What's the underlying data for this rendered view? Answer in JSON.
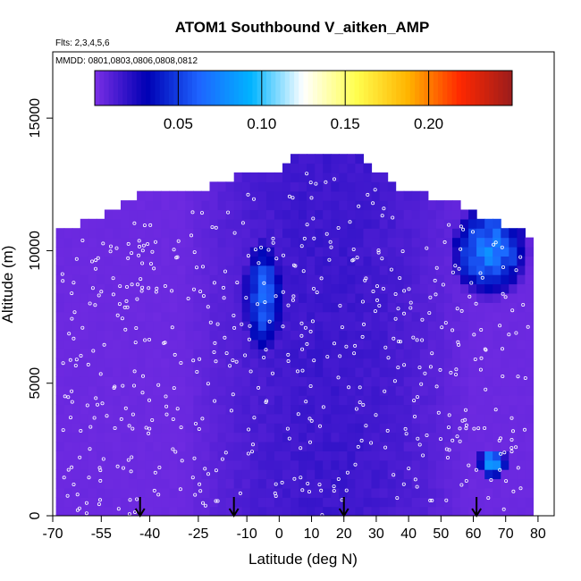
{
  "chart_data": {
    "type": "heatmap",
    "title": "ATOM1 Southbound V_aitken_AMP",
    "subtitle_flights": "Flts: 2,3,4,5,6",
    "subtitle_dates": "MMDD: 0801,0803,0806,0808,0812",
    "xlabel": "Latitude (deg N)",
    "ylabel": "Altitude (m)",
    "xlim": [
      -70,
      85
    ],
    "ylim": [
      0,
      17500
    ],
    "x_ticks": [
      -70,
      -55,
      -40,
      -25,
      -10,
      0,
      10,
      20,
      30,
      40,
      50,
      60,
      70,
      80
    ],
    "y_ticks": [
      0,
      5000,
      10000,
      15000
    ],
    "colorbar": {
      "range": [
        0,
        0.25
      ],
      "ticks": [
        0.05,
        0.1,
        0.15,
        0.2
      ],
      "tick_labels": [
        "0.05",
        "0.10",
        "0.15",
        "0.20"
      ],
      "colors": [
        "#7b2fe6",
        "#0000b4",
        "#1e64ff",
        "#00b4ff",
        "#ffffff",
        "#ffff50",
        "#ffb400",
        "#ff2800",
        "#9b1c1c"
      ]
    },
    "top_altitude_envelope": [
      {
        "lat": -69,
        "alt": 10500
      },
      {
        "lat": -60,
        "alt": 10900
      },
      {
        "lat": -50,
        "alt": 11400
      },
      {
        "lat": -40,
        "alt": 12000
      },
      {
        "lat": -25,
        "alt": 12000
      },
      {
        "lat": -10,
        "alt": 12800
      },
      {
        "lat": 0,
        "alt": 12800
      },
      {
        "lat": 5,
        "alt": 13300
      },
      {
        "lat": 25,
        "alt": 13400
      },
      {
        "lat": 28,
        "alt": 13000
      },
      {
        "lat": 36,
        "alt": 12100
      },
      {
        "lat": 55,
        "alt": 11600
      },
      {
        "lat": 65,
        "alt": 10900
      },
      {
        "lat": 78,
        "alt": 10300
      }
    ],
    "features": [
      {
        "lat_range": [
          -30,
          78
        ],
        "alt_range": [
          0,
          12500
        ],
        "value": 0.01
      },
      {
        "lat_range": [
          -10,
          0
        ],
        "alt_range": [
          6500,
          10000
        ],
        "value": 0.06
      },
      {
        "lat_range": [
          55,
          75
        ],
        "alt_range": [
          8500,
          11500
        ],
        "value": 0.07
      },
      {
        "lat_range": [
          62,
          70
        ],
        "alt_range": [
          1500,
          2500
        ],
        "value": 0.08
      },
      {
        "lat_range": [
          -70,
          -30
        ],
        "alt_range": [
          0,
          10500
        ],
        "value": 0.004
      }
    ],
    "markers_latitude": [
      -43,
      -14,
      20,
      61
    ]
  }
}
